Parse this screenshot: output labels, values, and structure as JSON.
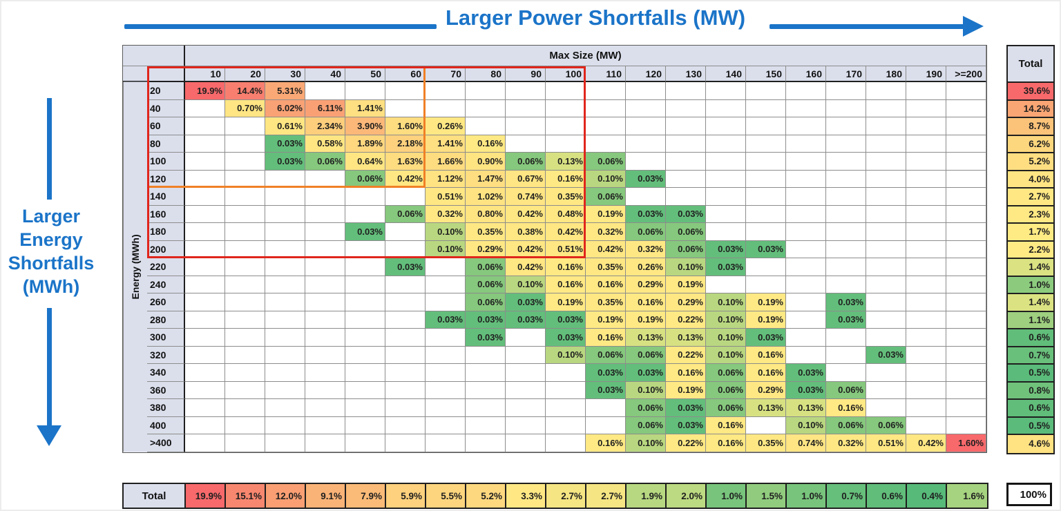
{
  "header": {
    "top_title": "Larger Power Shortfalls (MW)",
    "left_title_lines": [
      "Larger",
      "Energy",
      "Shortfalls",
      "(MWh)"
    ]
  },
  "style": {
    "accent_blue": "#1b74c8",
    "header_bg": "#dbdfec",
    "grid_line": "#8c8c8c",
    "red_box_color": "#e0261c",
    "orange_box_color": "#f08026"
  },
  "chart_data": {
    "type": "heatmap",
    "title": "Larger Power Shortfalls (MW)",
    "col_axis_label": "Max Size (MW)",
    "row_axis_label": "Energy (MWh)",
    "total_label": "Total",
    "grand_total": "100%",
    "columns": [
      "10",
      "20",
      "30",
      "40",
      "50",
      "60",
      "70",
      "80",
      "90",
      "100",
      "110",
      "120",
      "130",
      "140",
      "150",
      "160",
      "170",
      "180",
      "190",
      ">=200"
    ],
    "rows": [
      "20",
      "40",
      "60",
      "80",
      "100",
      "120",
      "140",
      "160",
      "180",
      "200",
      "220",
      "240",
      "260",
      "280",
      "300",
      "320",
      "340",
      "360",
      "380",
      "400",
      ">400"
    ],
    "cells": [
      [
        "19.9%",
        "14.4%",
        "5.31%",
        null,
        null,
        null,
        null,
        null,
        null,
        null,
        null,
        null,
        null,
        null,
        null,
        null,
        null,
        null,
        null,
        null
      ],
      [
        null,
        "0.70%",
        "6.02%",
        "6.11%",
        "1.41%",
        null,
        null,
        null,
        null,
        null,
        null,
        null,
        null,
        null,
        null,
        null,
        null,
        null,
        null,
        null
      ],
      [
        null,
        null,
        "0.61%",
        "2.34%",
        "3.90%",
        "1.60%",
        "0.26%",
        null,
        null,
        null,
        null,
        null,
        null,
        null,
        null,
        null,
        null,
        null,
        null,
        null
      ],
      [
        null,
        null,
        "0.03%",
        "0.58%",
        "1.89%",
        "2.18%",
        "1.41%",
        "0.16%",
        null,
        null,
        null,
        null,
        null,
        null,
        null,
        null,
        null,
        null,
        null,
        null
      ],
      [
        null,
        null,
        "0.03%",
        "0.06%",
        "0.64%",
        "1.63%",
        "1.66%",
        "0.90%",
        "0.06%",
        "0.13%",
        "0.06%",
        null,
        null,
        null,
        null,
        null,
        null,
        null,
        null,
        null
      ],
      [
        null,
        null,
        null,
        null,
        "0.06%",
        "0.42%",
        "1.12%",
        "1.47%",
        "0.67%",
        "0.16%",
        "0.10%",
        "0.03%",
        null,
        null,
        null,
        null,
        null,
        null,
        null,
        null
      ],
      [
        null,
        null,
        null,
        null,
        null,
        null,
        "0.51%",
        "1.02%",
        "0.74%",
        "0.35%",
        "0.06%",
        null,
        null,
        null,
        null,
        null,
        null,
        null,
        null,
        null
      ],
      [
        null,
        null,
        null,
        null,
        null,
        "0.06%",
        "0.32%",
        "0.80%",
        "0.42%",
        "0.48%",
        "0.19%",
        "0.03%",
        "0.03%",
        null,
        null,
        null,
        null,
        null,
        null,
        null
      ],
      [
        null,
        null,
        null,
        null,
        "0.03%",
        null,
        "0.10%",
        "0.35%",
        "0.38%",
        "0.42%",
        "0.32%",
        "0.06%",
        "0.06%",
        null,
        null,
        null,
        null,
        null,
        null,
        null
      ],
      [
        null,
        null,
        null,
        null,
        null,
        null,
        "0.10%",
        "0.29%",
        "0.42%",
        "0.51%",
        "0.42%",
        "0.32%",
        "0.06%",
        "0.03%",
        "0.03%",
        null,
        null,
        null,
        null,
        null
      ],
      [
        null,
        null,
        null,
        null,
        null,
        "0.03%",
        null,
        "0.06%",
        "0.42%",
        "0.16%",
        "0.35%",
        "0.26%",
        "0.10%",
        "0.03%",
        null,
        null,
        null,
        null,
        null,
        null
      ],
      [
        null,
        null,
        null,
        null,
        null,
        null,
        null,
        "0.06%",
        "0.10%",
        "0.16%",
        "0.16%",
        "0.29%",
        "0.19%",
        null,
        null,
        null,
        null,
        null,
        null,
        null
      ],
      [
        null,
        null,
        null,
        null,
        null,
        null,
        null,
        "0.06%",
        "0.03%",
        "0.19%",
        "0.35%",
        "0.16%",
        "0.29%",
        "0.10%",
        "0.19%",
        null,
        "0.03%",
        null,
        null,
        null
      ],
      [
        null,
        null,
        null,
        null,
        null,
        null,
        "0.03%",
        "0.03%",
        "0.03%",
        "0.03%",
        "0.19%",
        "0.19%",
        "0.22%",
        "0.10%",
        "0.19%",
        null,
        "0.03%",
        null,
        null,
        null
      ],
      [
        null,
        null,
        null,
        null,
        null,
        null,
        null,
        "0.03%",
        null,
        "0.03%",
        "0.16%",
        "0.13%",
        "0.13%",
        "0.10%",
        "0.03%",
        null,
        null,
        null,
        null,
        null
      ],
      [
        null,
        null,
        null,
        null,
        null,
        null,
        null,
        null,
        null,
        "0.10%",
        "0.06%",
        "0.06%",
        "0.22%",
        "0.10%",
        "0.16%",
        null,
        null,
        "0.03%",
        null,
        null
      ],
      [
        null,
        null,
        null,
        null,
        null,
        null,
        null,
        null,
        null,
        null,
        "0.03%",
        "0.03%",
        "0.16%",
        "0.06%",
        "0.16%",
        "0.03%",
        null,
        null,
        null,
        null
      ],
      [
        null,
        null,
        null,
        null,
        null,
        null,
        null,
        null,
        null,
        null,
        "0.03%",
        "0.10%",
        "0.19%",
        "0.06%",
        "0.29%",
        "0.03%",
        "0.06%",
        null,
        null,
        null
      ],
      [
        null,
        null,
        null,
        null,
        null,
        null,
        null,
        null,
        null,
        null,
        null,
        "0.06%",
        "0.03%",
        "0.06%",
        "0.13%",
        "0.13%",
        "0.16%",
        null,
        null,
        null
      ],
      [
        null,
        null,
        null,
        null,
        null,
        null,
        null,
        null,
        null,
        null,
        null,
        "0.06%",
        "0.03%",
        "0.16%",
        null,
        "0.10%",
        "0.06%",
        "0.06%",
        null,
        null
      ],
      [
        null,
        null,
        null,
        null,
        null,
        null,
        null,
        null,
        null,
        null,
        "0.16%",
        "0.10%",
        "0.22%",
        "0.16%",
        "0.35%",
        "0.74%",
        "0.32%",
        "0.51%",
        "0.42%",
        "1.60%"
      ]
    ],
    "row_totals": [
      "39.6%",
      "14.2%",
      "8.7%",
      "6.2%",
      "5.2%",
      "4.0%",
      "2.7%",
      "2.3%",
      "1.7%",
      "2.2%",
      "1.4%",
      "1.0%",
      "1.4%",
      "1.1%",
      "0.6%",
      "0.7%",
      "0.5%",
      "0.8%",
      "0.6%",
      "0.5%",
      "4.6%"
    ],
    "col_totals": [
      "19.9%",
      "15.1%",
      "12.0%",
      "9.1%",
      "7.9%",
      "5.9%",
      "5.5%",
      "5.2%",
      "3.3%",
      "2.7%",
      "2.7%",
      "1.9%",
      "2.0%",
      "1.0%",
      "1.5%",
      "1.0%",
      "0.7%",
      "0.6%",
      "0.4%",
      "1.6%"
    ],
    "color_scales": {
      "main": [
        [
          0.03,
          "#63BE7B"
        ],
        [
          0.06,
          "#86C87D"
        ],
        [
          0.1,
          "#B9D780"
        ],
        [
          0.13,
          "#D7E182"
        ],
        [
          0.16,
          "#FFE984"
        ],
        [
          1.0,
          "#FFE382"
        ],
        [
          1.66,
          "#FEDC80"
        ],
        [
          2.34,
          "#FDCE7C"
        ],
        [
          3.9,
          "#FBB879"
        ],
        [
          6.11,
          "#F9A175"
        ],
        [
          14.4,
          "#F87F6F"
        ],
        [
          19.9,
          "#F8696B"
        ]
      ],
      "row_total": [
        [
          0.5,
          "#5ABB7A"
        ],
        [
          0.8,
          "#70C27B"
        ],
        [
          1.0,
          "#8CCB7E"
        ],
        [
          1.1,
          "#9ED07F"
        ],
        [
          1.4,
          "#DAE282"
        ],
        [
          1.7,
          "#FFEB84"
        ],
        [
          2.7,
          "#FFE884"
        ],
        [
          4.6,
          "#FFE282"
        ],
        [
          6.2,
          "#FDD77E"
        ],
        [
          8.7,
          "#FAC379"
        ],
        [
          14.2,
          "#F9A674"
        ],
        [
          39.6,
          "#F8696B"
        ]
      ],
      "col_total": [
        [
          0.4,
          "#57BA79"
        ],
        [
          0.7,
          "#66BF7B"
        ],
        [
          1.0,
          "#78C47C"
        ],
        [
          1.5,
          "#91CC7E"
        ],
        [
          1.6,
          "#A6D37F"
        ],
        [
          2.0,
          "#BCDA81"
        ],
        [
          2.7,
          "#F5E583"
        ],
        [
          3.3,
          "#FFE884"
        ],
        [
          5.5,
          "#FDD57E"
        ],
        [
          7.9,
          "#FABB78"
        ],
        [
          12.0,
          "#F99F73"
        ],
        [
          15.1,
          "#F8876F"
        ],
        [
          19.9,
          "#F8696B"
        ]
      ]
    },
    "overrides": [
      {
        "row_index": 20,
        "col_index": 19,
        "color": "#F8696B"
      }
    ],
    "annotations": {
      "red_box": {
        "rows": "20-200",
        "cols": "10-100",
        "color": "#e0261c"
      },
      "orange_box": {
        "rows": "20-120",
        "cols": "10-60",
        "color": "#f08026"
      }
    }
  }
}
